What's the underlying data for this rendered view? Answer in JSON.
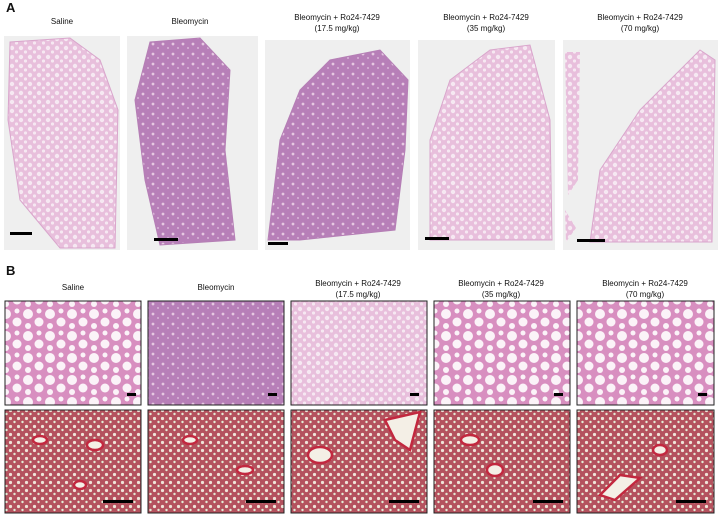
{
  "panels": [
    {
      "label": "A",
      "columns": [
        {
          "title": "Saline"
        },
        {
          "title": "Bleomycin"
        },
        {
          "title": "Bleomycin + Ro24-7429",
          "subtitle": "(17.5 mg/kg)"
        },
        {
          "title": "Bleomycin + Ro24-7429",
          "subtitle": "(35 mg/kg)"
        },
        {
          "title": "Bleomycin + Ro24-7429",
          "subtitle": "(70 mg/kg)"
        }
      ]
    },
    {
      "label": "B",
      "columns": [
        {
          "title": "Saline"
        },
        {
          "title": "Bleomycin"
        },
        {
          "title": "Bleomycin + Ro24-7429",
          "subtitle": "(17.5 mg/kg)"
        },
        {
          "title": "Bleomycin + Ro24-7429",
          "subtitle": "(35 mg/kg)"
        },
        {
          "title": "Bleomycin + Ro24-7429",
          "subtitle": "(70 mg/kg)"
        }
      ]
    }
  ]
}
